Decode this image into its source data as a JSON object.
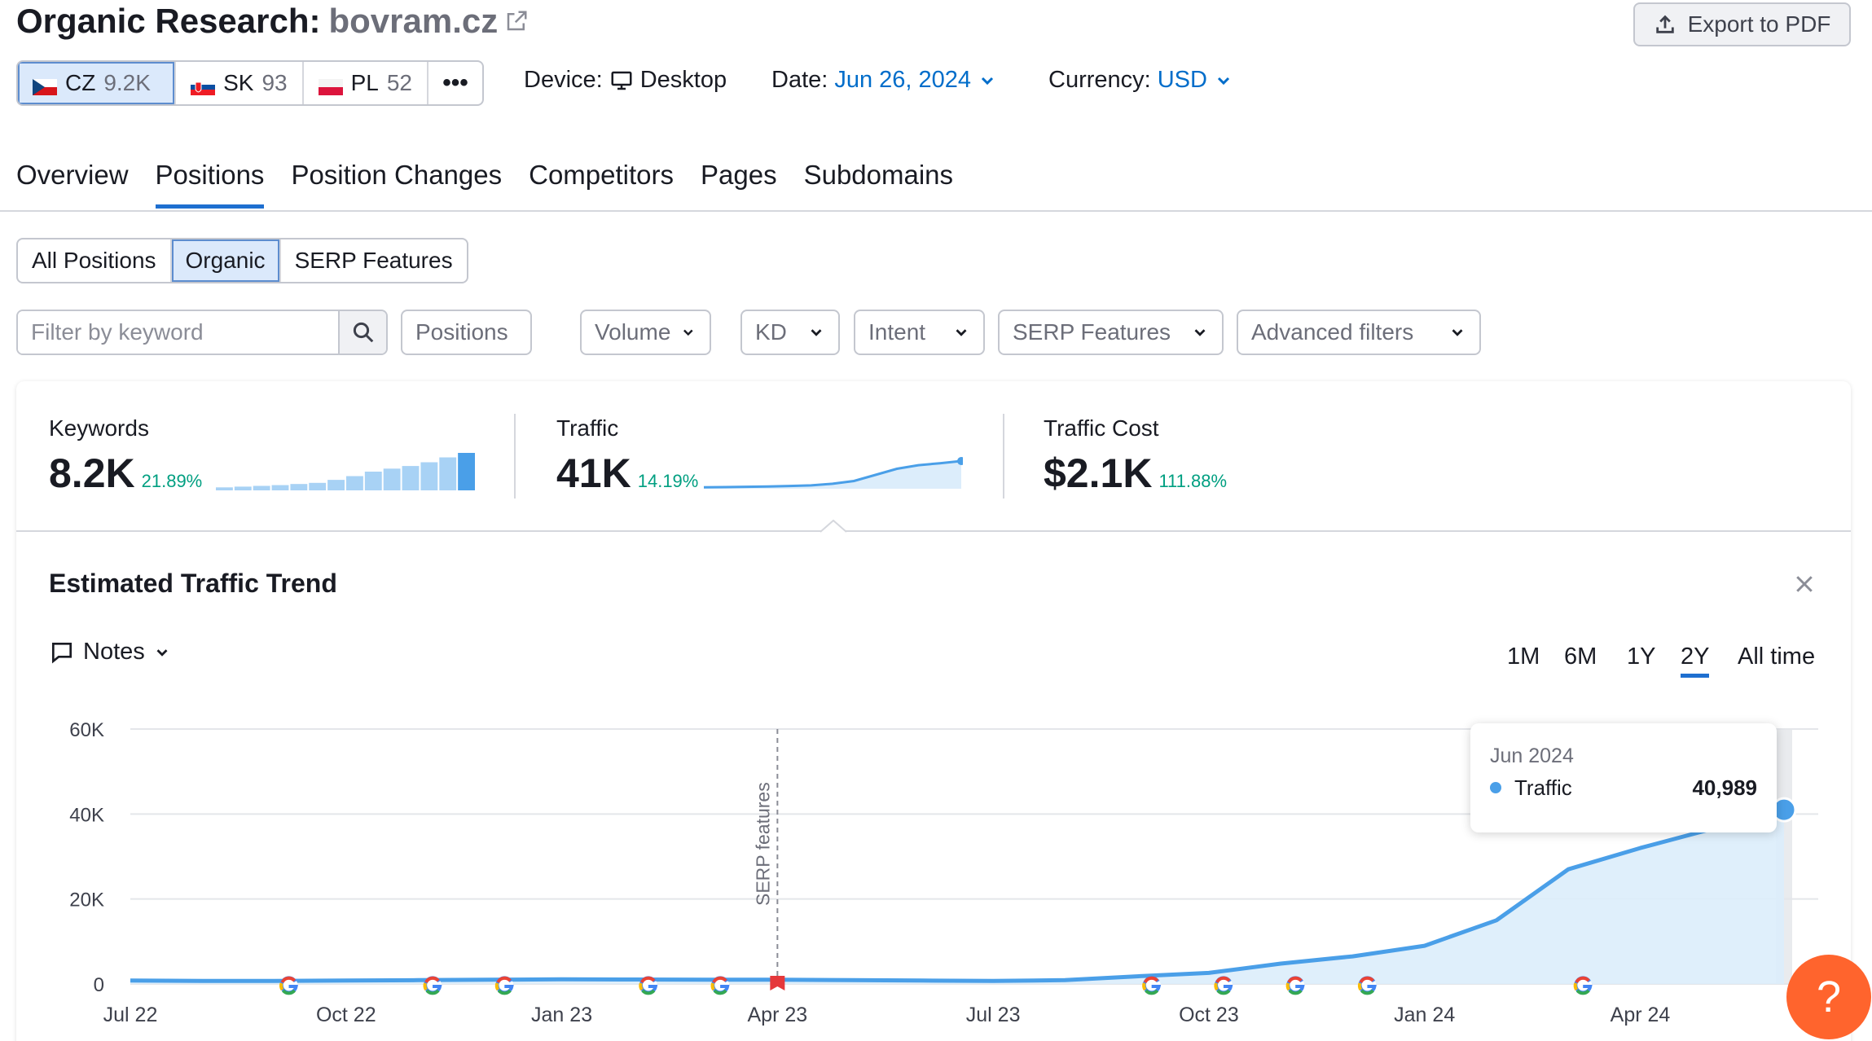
{
  "header": {
    "title": "Organic Research:",
    "domain": "bovram.cz",
    "export_label": "Export to PDF"
  },
  "databases": [
    {
      "code": "CZ",
      "count": "9.2K",
      "active": true
    },
    {
      "code": "SK",
      "count": "93",
      "active": false
    },
    {
      "code": "PL",
      "count": "52",
      "active": false
    }
  ],
  "more_label": "•••",
  "meta": {
    "device_label": "Device:",
    "device_value": "Desktop",
    "date_label": "Date:",
    "date_value": "Jun 26, 2024",
    "currency_label": "Currency:",
    "currency_value": "USD"
  },
  "tabs": [
    "Overview",
    "Positions",
    "Position Changes",
    "Competitors",
    "Pages",
    "Subdomains"
  ],
  "active_tab": "Positions",
  "subtabs": [
    "All Positions",
    "Organic",
    "SERP Features"
  ],
  "active_subtab": "Organic",
  "filters": {
    "keyword_placeholder": "Filter by keyword",
    "dropdowns": [
      "Positions",
      "Volume",
      "KD",
      "Intent",
      "SERP Features",
      "Advanced filters"
    ]
  },
  "metrics": {
    "keywords": {
      "label": "Keywords",
      "value": "8.2K",
      "change": "21.89%"
    },
    "traffic": {
      "label": "Traffic",
      "value": "41K",
      "change": "14.19%"
    },
    "traffic_cost": {
      "label": "Traffic Cost",
      "value": "$2.1K",
      "change": "111.88%"
    }
  },
  "chart_section": {
    "title": "Estimated Traffic Trend",
    "notes_label": "Notes",
    "ranges": [
      "1M",
      "6M",
      "1Y",
      "2Y",
      "All time"
    ],
    "active_range": "2Y",
    "tooltip": {
      "date": "Jun 2024",
      "series": "Traffic",
      "value": "40,989"
    },
    "annotation_label": "SERP features"
  },
  "colors": {
    "accent": "#1e6fd0",
    "link": "#006dca",
    "positive": "#009f81",
    "line": "#4a9fe8",
    "area": "#dcedfb",
    "help": "#ff642d"
  },
  "chart_data": {
    "type": "area",
    "x": [
      "Jul 22",
      "Aug 22",
      "Sep 22",
      "Oct 22",
      "Nov 22",
      "Dec 22",
      "Jan 23",
      "Feb 23",
      "Mar 23",
      "Apr 23",
      "May 23",
      "Jun 23",
      "Jul 23",
      "Aug 23",
      "Sep 23",
      "Oct 23",
      "Nov 23",
      "Dec 23",
      "Jan 24",
      "Feb 24",
      "Mar 24",
      "Apr 24",
      "May 24",
      "Jun 24"
    ],
    "xticks": [
      "Jul 22",
      "Oct 22",
      "Jan 23",
      "Apr 23",
      "Jul 23",
      "Oct 23",
      "Jan 24",
      "Apr 24"
    ],
    "series": [
      {
        "name": "Traffic",
        "values": [
          800,
          700,
          700,
          800,
          900,
          1000,
          1100,
          1050,
          1000,
          1000,
          900,
          800,
          700,
          900,
          1800,
          2600,
          4800,
          6500,
          9000,
          15000,
          27000,
          32000,
          36500,
          40989
        ]
      }
    ],
    "yticks": [
      "0",
      "20K",
      "40K",
      "60K"
    ],
    "ylim": [
      0,
      60000
    ],
    "annotation": {
      "x": "Apr 23",
      "label": "SERP features"
    },
    "google_update_markers": [
      "Sep 22",
      "Nov 22",
      "Dec 22",
      "Feb 23",
      "Mar 23",
      "Sep 23",
      "Oct 23",
      "Nov 23",
      "Dec 23",
      "Mar 24"
    ],
    "grid": true
  },
  "sparklines": {
    "keywords_bars": [
      0.08,
      0.1,
      0.12,
      0.14,
      0.17,
      0.2,
      0.28,
      0.38,
      0.5,
      0.58,
      0.65,
      0.75,
      0.88,
      1.0
    ],
    "traffic_line": [
      0.05,
      0.06,
      0.07,
      0.08,
      0.1,
      0.12,
      0.18,
      0.28,
      0.5,
      0.72,
      0.85,
      0.92,
      1.0
    ]
  }
}
